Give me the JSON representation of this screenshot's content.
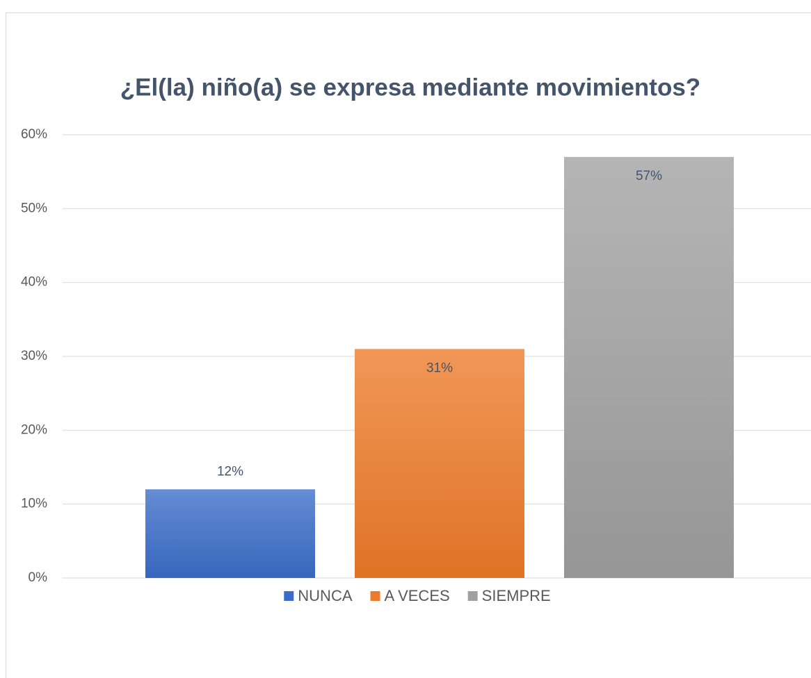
{
  "chart_data": {
    "type": "bar",
    "title": "¿El(la) niño(a) se expresa mediante movimientos?",
    "categories": [
      null
    ],
    "series": [
      {
        "name": "NUNCA",
        "color": "#3a6cc8",
        "values": [
          12
        ],
        "value_labels": [
          "12%"
        ],
        "label_position": "outside_end"
      },
      {
        "name": "A VECES",
        "color": "#ed7a28",
        "values": [
          31
        ],
        "value_labels": [
          "31%"
        ],
        "label_position": "inside_end"
      },
      {
        "name": "SIEMPRE",
        "color": "#a0a0a0",
        "values": [
          57
        ],
        "value_labels": [
          "57%"
        ],
        "label_position": "inside_end"
      }
    ],
    "ylim": [
      0,
      60
    ],
    "yticks": [
      {
        "value": 0,
        "label": "0%"
      },
      {
        "value": 10,
        "label": "10%"
      },
      {
        "value": 20,
        "label": "20%"
      },
      {
        "value": 30,
        "label": "30%"
      },
      {
        "value": 40,
        "label": "40%"
      },
      {
        "value": 50,
        "label": "50%"
      },
      {
        "value": 60,
        "label": "60%"
      }
    ],
    "grid": true,
    "legend": "bottom"
  }
}
